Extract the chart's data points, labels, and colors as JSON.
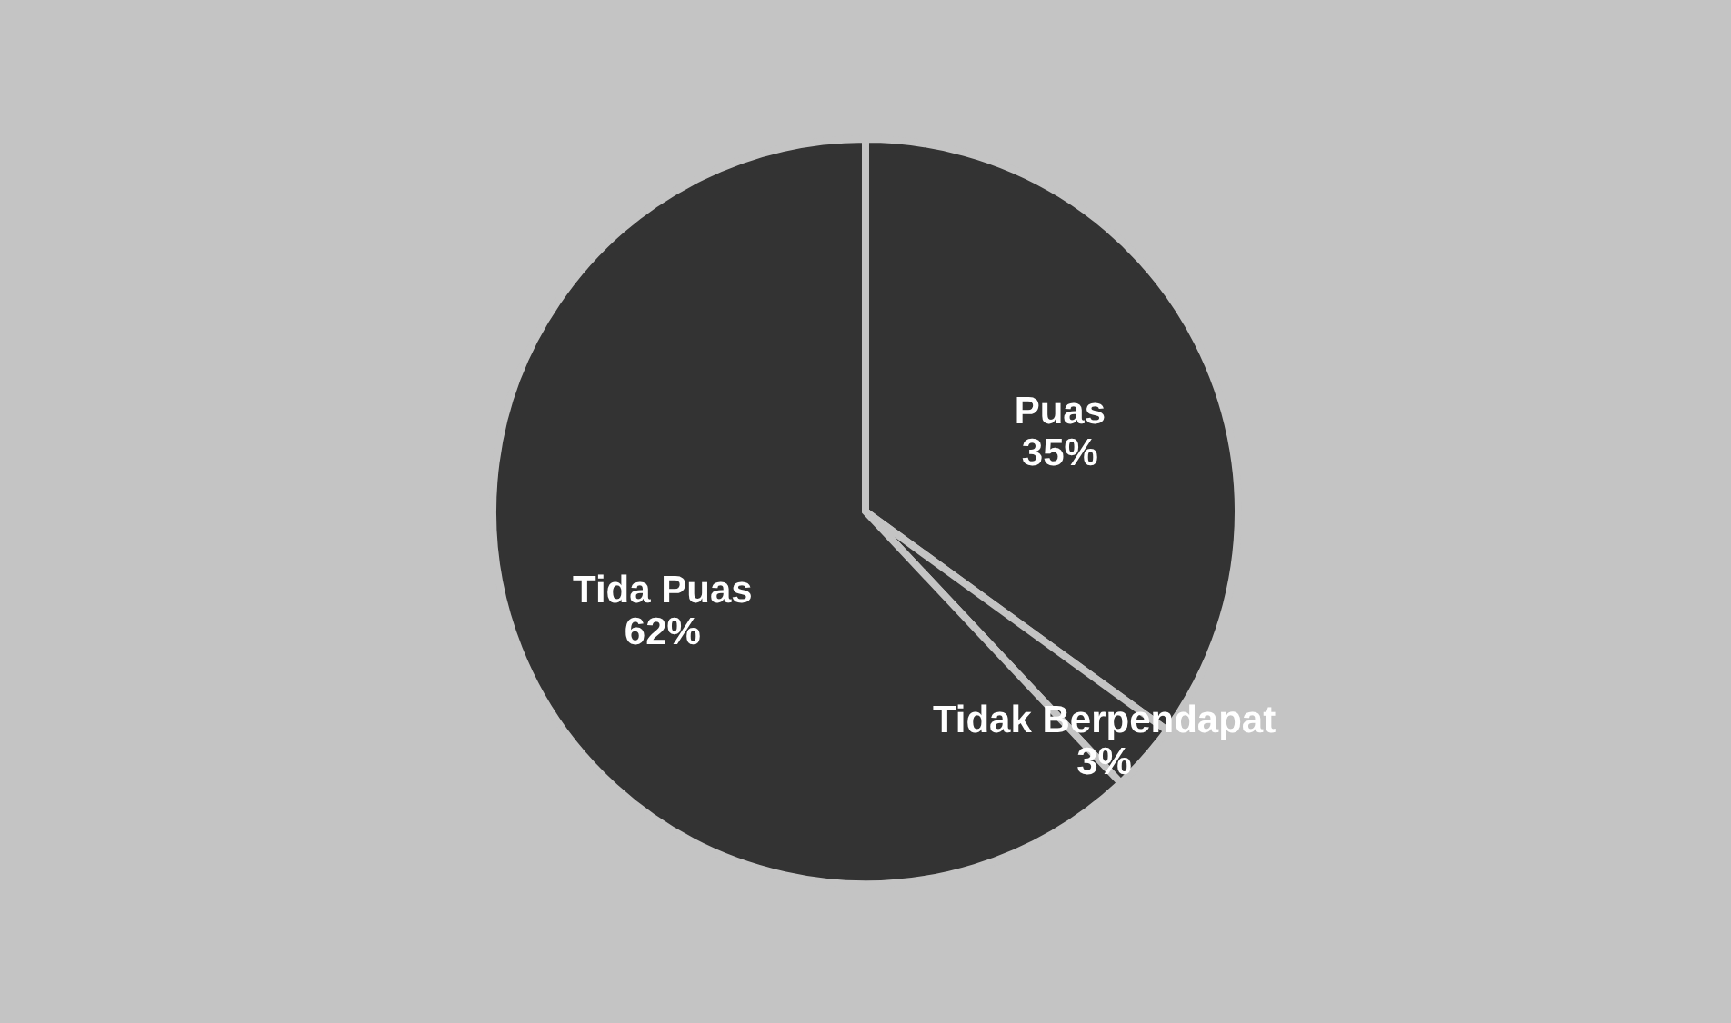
{
  "chart_data": {
    "type": "pie",
    "categories": [
      "Puas",
      "Tidak Berpendapat",
      "Tida Puas"
    ],
    "values": [
      35,
      3,
      62
    ],
    "colors": [
      "#333333",
      "#333333",
      "#333333"
    ],
    "value_labels": [
      "35%",
      "3%",
      "62%"
    ],
    "legend": false
  }
}
